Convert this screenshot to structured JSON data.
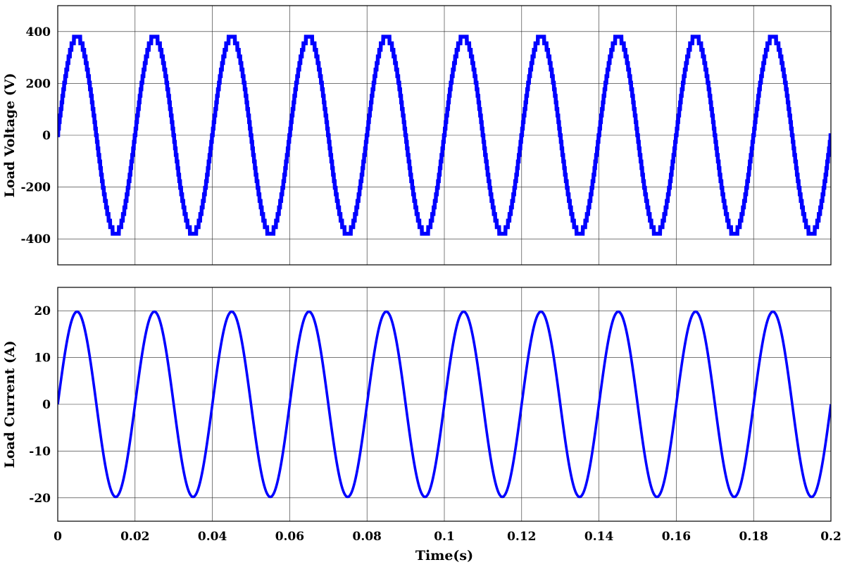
{
  "chart_data": [
    {
      "type": "line",
      "title": "",
      "xlabel": "",
      "ylabel": "Load Voltage (V)",
      "xlim": [
        0,
        0.2
      ],
      "ylim": [
        -500,
        500
      ],
      "xticks": [
        0,
        0.02,
        0.04,
        0.06,
        0.08,
        0.1,
        0.12,
        0.14,
        0.16,
        0.18,
        0.2
      ],
      "xtick_labels": [],
      "yticks": [
        -400,
        -200,
        0,
        200,
        400
      ],
      "ytick_labels": [
        "-400",
        "-200",
        "0",
        "200",
        "400"
      ],
      "grid": true,
      "series_color": "#0000ff",
      "series": [
        {
          "waveform": "stepped multilevel sinusoid",
          "amplitude": 380,
          "frequency_hz": 50,
          "phase_deg": 0,
          "levels": 15,
          "x": [
            0,
            0.005,
            0.01,
            0.015,
            0.02
          ],
          "values": [
            0,
            380,
            0,
            -380,
            0
          ]
        }
      ]
    },
    {
      "type": "line",
      "title": "",
      "xlabel": "Time(s)",
      "ylabel": "Load Current (A)",
      "xlim": [
        0,
        0.2
      ],
      "ylim": [
        -25,
        25
      ],
      "xticks": [
        0,
        0.02,
        0.04,
        0.06,
        0.08,
        0.1,
        0.12,
        0.14,
        0.16,
        0.18,
        0.2
      ],
      "xtick_labels": [
        "0",
        "0.02",
        "0.04",
        "0.06",
        "0.08",
        "0.1",
        "0.12",
        "0.14",
        "0.16",
        "0.18",
        "0.2"
      ],
      "yticks": [
        -20,
        -10,
        0,
        10,
        20
      ],
      "ytick_labels": [
        "-20",
        "-10",
        "0",
        "10",
        "20"
      ],
      "grid": true,
      "series_color": "#0000ff",
      "series": [
        {
          "waveform": "sinusoid",
          "amplitude": 19.8,
          "frequency_hz": 50,
          "phase_deg": 0,
          "x": [
            0,
            0.005,
            0.01,
            0.015,
            0.02
          ],
          "values": [
            0,
            19.8,
            0,
            -19.8,
            0
          ]
        }
      ]
    }
  ]
}
